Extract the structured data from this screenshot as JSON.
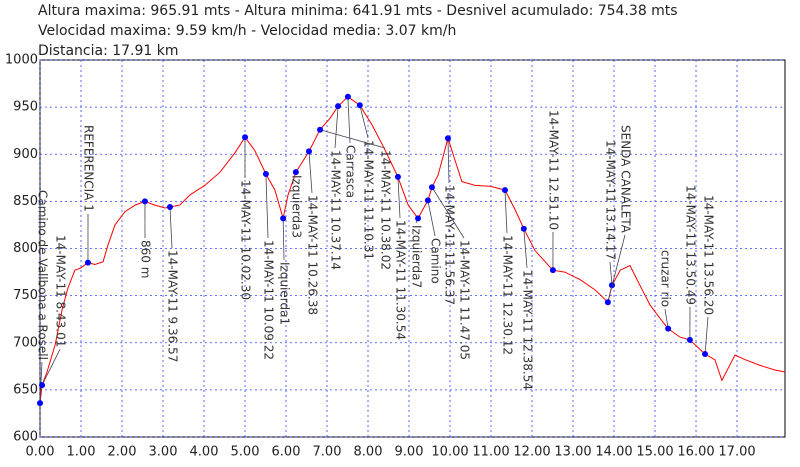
{
  "chart_data": {
    "type": "line",
    "title": [
      "Altura maxima: 965.91 mts - Altura minima: 641.91 mts - Desnivel acumulado: 754.38 mts",
      "Velocidad maxima: 9.59 km/h - Velocidad media: 3.07 km/h",
      "Distancia: 17.91 km"
    ],
    "x": [
      0,
      0.05,
      0.17,
      0.37,
      0.54,
      0.68,
      0.85,
      0.98,
      1.17,
      1.34,
      1.54,
      1.66,
      1.83,
      2.07,
      2.32,
      2.56,
      2.8,
      3.05,
      3.17,
      3.41,
      3.66,
      4.02,
      4.39,
      4.76,
      5.0,
      5.24,
      5.51,
      5.73,
      5.93,
      6.05,
      6.24,
      6.56,
      6.83,
      7.07,
      7.27,
      7.51,
      7.8,
      8.1,
      8.41,
      8.73,
      8.98,
      9.22,
      9.46,
      9.56,
      9.71,
      9.95,
      10.12,
      10.29,
      10.61,
      10.98,
      11.34,
      11.59,
      11.8,
      12.07,
      12.32,
      12.51,
      12.8,
      13.17,
      13.54,
      13.85,
      13.95,
      14.15,
      14.39,
      14.63,
      14.88,
      15.12,
      15.32,
      15.61,
      15.85,
      16.22,
      16.46,
      16.63,
      16.95,
      17.2,
      17.56,
      17.93,
      18.17
    ],
    "series": [
      {
        "color": "#ff0000",
        "values": [
          636,
          655,
          669,
          698,
          735,
          758,
          777,
          779,
          785,
          783,
          786,
          804,
          825,
          839,
          846,
          850,
          846,
          843,
          844,
          846,
          857,
          867,
          881,
          902,
          918,
          904,
          879,
          862,
          832,
          857,
          881,
          903,
          926,
          938,
          951,
          961,
          952,
          931,
          905,
          876,
          846,
          832,
          851,
          865,
          878,
          917,
          894,
          871,
          867,
          866,
          862,
          841,
          821,
          798,
          786,
          777,
          775,
          767,
          756,
          743,
          761,
          777,
          782,
          761,
          740,
          726,
          715,
          706,
          703,
          688,
          682,
          660,
          687,
          682,
          676,
          671,
          669
        ]
      }
    ],
    "waypoints": [
      {
        "label": "Camino de Vallbona a Rosell",
        "x": 0,
        "y": 636
      },
      {
        "label": "14-MAY-11 8.43.01",
        "x": 0.05,
        "y": 655
      },
      {
        "label": "REFERENCIA 1",
        "x": 1.17,
        "y": 785
      },
      {
        "label": "860 m",
        "x": 2.56,
        "y": 850
      },
      {
        "label": "14-MAY-11 9.36.57",
        "x": 3.17,
        "y": 844
      },
      {
        "label": "14-MAY-11 10.02.30",
        "x": 5.0,
        "y": 918
      },
      {
        "label": "14-MAY-11 10.09.22",
        "x": 5.51,
        "y": 879
      },
      {
        "label": "Izquierda1",
        "x": 5.93,
        "y": 832
      },
      {
        "label": "Izquierda3",
        "x": 6.24,
        "y": 881
      },
      {
        "label": "14-MAY-11 10.26.38",
        "x": 6.56,
        "y": 903
      },
      {
        "label": "14-MAY-11 10.37.14",
        "x": 7.27,
        "y": 951
      },
      {
        "label": "Carrasca",
        "x": 7.51,
        "y": 961
      },
      {
        "label": "14-MAY-11 11.10.31",
        "x": 7.8,
        "y": 952
      },
      {
        "label": "14-MAY-11 10.38.02",
        "x": 6.83,
        "y": 926
      },
      {
        "label": "14-MAY-11 11.30.54",
        "x": 8.73,
        "y": 876
      },
      {
        "label": "Izquierda7",
        "x": 9.22,
        "y": 832
      },
      {
        "label": "Camino",
        "x": 9.46,
        "y": 851
      },
      {
        "label": "14-MAY-11 11.56.37",
        "x": 9.95,
        "y": 917
      },
      {
        "label": "14-MAY-11 11.47.05",
        "x": 9.56,
        "y": 865
      },
      {
        "label": "14-MAY-11 12.30.12",
        "x": 11.34,
        "y": 862
      },
      {
        "label": "14-MAY-11 12.38.54",
        "x": 11.8,
        "y": 821
      },
      {
        "label": "14-MAY-11 12.51.10",
        "x": 12.51,
        "y": 777
      },
      {
        "label": "14-MAY-11 13.14.17",
        "x": 13.95,
        "y": 761
      },
      {
        "label": "SENDA CANALETA",
        "x": 13.85,
        "y": 743
      },
      {
        "label": "cruzar rio",
        "x": 15.32,
        "y": 715
      },
      {
        "label": "14-MAY-11 13.50.49",
        "x": 15.85,
        "y": 703
      },
      {
        "label": "14-MAY-11 13.56.20",
        "x": 16.22,
        "y": 688
      }
    ],
    "waypoint_color": "#0000ff",
    "xlim": [
      0,
      18.17
    ],
    "ylim": [
      600,
      1000
    ],
    "xticks": [
      {
        "value": 0,
        "label": "0.00"
      },
      {
        "value": 1,
        "label": "1.00"
      },
      {
        "value": 2,
        "label": "2.00"
      },
      {
        "value": 3,
        "label": "3.00"
      },
      {
        "value": 4,
        "label": "4.00"
      },
      {
        "value": 5,
        "label": "5.00"
      },
      {
        "value": 6,
        "label": "6.00"
      },
      {
        "value": 7,
        "label": "7.00"
      },
      {
        "value": 8,
        "label": "8.00"
      },
      {
        "value": 9,
        "label": "9.00"
      },
      {
        "value": 10,
        "label": "10.00"
      },
      {
        "value": 11,
        "label": "11.00"
      },
      {
        "value": 12,
        "label": "12.00"
      },
      {
        "value": 13,
        "label": "13.00"
      },
      {
        "value": 14,
        "label": "14.00"
      },
      {
        "value": 15,
        "label": "15.00"
      },
      {
        "value": 16,
        "label": "16.00"
      },
      {
        "value": 17,
        "label": "17.00"
      }
    ],
    "yticks": [
      600,
      650,
      700,
      750,
      800,
      850,
      900,
      950,
      1000
    ],
    "grid": true
  }
}
